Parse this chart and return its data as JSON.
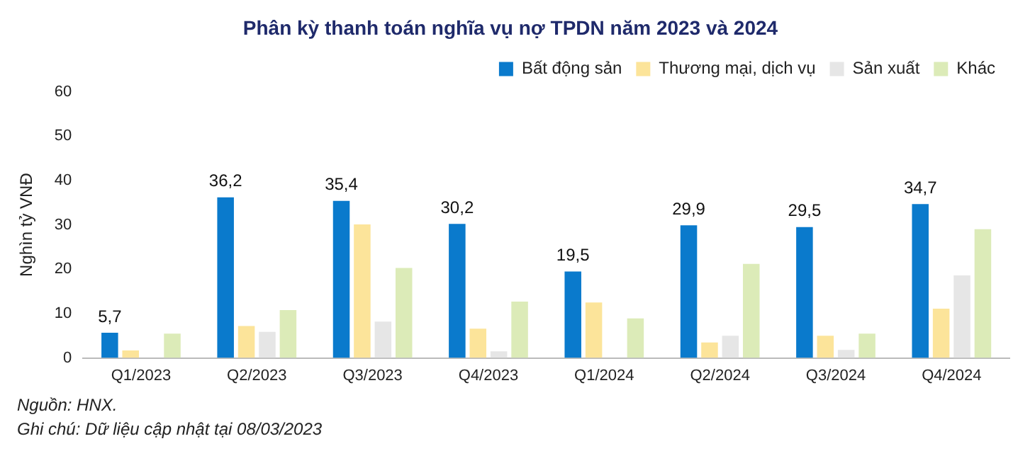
{
  "chart_data": {
    "type": "bar",
    "title": "Phân kỳ thanh toán nghĩa vụ nợ TPDN năm 2023 và 2024",
    "ylabel": "Nghìn tỷ VNĐ",
    "categories": [
      "Q1/2023",
      "Q2/2023",
      "Q3/2023",
      "Q4/2023",
      "Q1/2024",
      "Q2/2024",
      "Q3/2024",
      "Q4/2024"
    ],
    "series": [
      {
        "name": "Bất động sản",
        "color": "#0a7acc",
        "values": [
          5.7,
          36.2,
          35.4,
          30.2,
          19.5,
          29.9,
          29.5,
          34.7
        ],
        "value_labels": [
          "5,7",
          "36,2",
          "35,4",
          "30,2",
          "19,5",
          "29,9",
          "29,5",
          "34,7"
        ]
      },
      {
        "name": "Thương mại, dịch vụ",
        "color": "#fce49a",
        "values": [
          1.7,
          7.2,
          30.1,
          6.6,
          12.5,
          3.5,
          5.0,
          11.1
        ]
      },
      {
        "name": "Sản xuất",
        "color": "#e6e6e6",
        "values": [
          0,
          5.9,
          8.2,
          1.5,
          0,
          5.0,
          1.8,
          18.6
        ]
      },
      {
        "name": "Khác",
        "color": "#dcebb8",
        "values": [
          5.5,
          10.8,
          20.3,
          12.7,
          8.9,
          21.2,
          5.5,
          29.0
        ]
      }
    ],
    "ylim": [
      0,
      60
    ],
    "yticks": [
      0,
      10,
      20,
      30,
      40,
      50,
      60
    ],
    "grid": false,
    "legend": "top",
    "annotations": [
      "Nguồn: HNX.",
      "Ghi chú: Dữ liệu cập nhật tại 08/03/2023"
    ]
  }
}
